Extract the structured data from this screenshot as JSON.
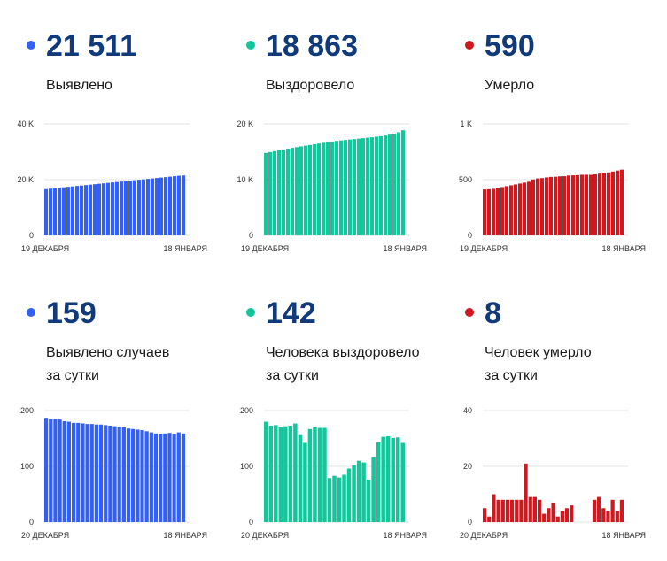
{
  "panels": [
    {
      "value": "21 511",
      "label": [
        "Выявлено"
      ],
      "color": "#3360f0",
      "chart_data": {
        "type": "bar",
        "ylim": [
          0,
          40000
        ],
        "yticks": [
          0,
          20000,
          40000
        ],
        "ytick_labels": [
          "0",
          "20 K",
          "40 K"
        ],
        "x_labels": [
          "19 ДЕКАБРЯ",
          "18 ЯНВАРЯ"
        ],
        "values": [
          16600,
          16760,
          16920,
          17080,
          17240,
          17400,
          17560,
          17720,
          17880,
          18040,
          18200,
          18360,
          18520,
          18680,
          18840,
          19000,
          19160,
          19320,
          19480,
          19640,
          19800,
          19960,
          20120,
          20280,
          20440,
          20600,
          20760,
          20920,
          21080,
          21240,
          21400,
          21511
        ]
      }
    },
    {
      "value": "18 863",
      "label": [
        "Выздоровело"
      ],
      "color": "#12c79c",
      "chart_data": {
        "type": "bar",
        "ylim": [
          0,
          20000
        ],
        "yticks": [
          0,
          10000,
          20000
        ],
        "ytick_labels": [
          "0",
          "10 K",
          "20 K"
        ],
        "x_labels": [
          "19 ДЕКАБРЯ",
          "18 ЯНВАРЯ"
        ],
        "values": [
          14800,
          14950,
          15100,
          15250,
          15400,
          15550,
          15700,
          15830,
          15960,
          16090,
          16220,
          16350,
          16480,
          16600,
          16720,
          16840,
          16960,
          17040,
          17120,
          17200,
          17280,
          17360,
          17440,
          17520,
          17600,
          17700,
          17800,
          17920,
          18080,
          18260,
          18500,
          18863
        ]
      }
    },
    {
      "value": "590",
      "label": [
        "Умерло"
      ],
      "color": "#cc1a20",
      "chart_data": {
        "type": "bar",
        "ylim": [
          0,
          1000
        ],
        "yticks": [
          0,
          500,
          1000
        ],
        "ytick_labels": [
          "0",
          "500",
          "1 K"
        ],
        "x_labels": [
          "19 ДЕКАБРЯ",
          "18 ЯНВАРЯ"
        ],
        "values": [
          412,
          414,
          417,
          425,
          433,
          441,
          449,
          457,
          465,
          473,
          481,
          502,
          511,
          514,
          520,
          525,
          526,
          530,
          531,
          537,
          539,
          541,
          544,
          544,
          544,
          548,
          554,
          561,
          565,
          573,
          582,
          590
        ]
      }
    },
    {
      "value": "159",
      "label": [
        "Выявлено случаев",
        "за сутки"
      ],
      "color": "#3360f0",
      "chart_data": {
        "type": "bar",
        "ylim": [
          0,
          200
        ],
        "yticks": [
          0,
          100,
          200
        ],
        "ytick_labels": [
          "0",
          "100",
          "200"
        ],
        "x_labels": [
          "20 ДЕКАБРЯ",
          "18 ЯНВАРЯ"
        ],
        "values": [
          187,
          185,
          185,
          184,
          181,
          180,
          178,
          178,
          177,
          176,
          176,
          175,
          175,
          174,
          173,
          172,
          171,
          170,
          168,
          167,
          166,
          165,
          163,
          161,
          159,
          158,
          159,
          160,
          158,
          161,
          159
        ]
      }
    },
    {
      "value": "142",
      "label": [
        "Человека выздоровело",
        "за сутки"
      ],
      "color": "#12c79c",
      "chart_data": {
        "type": "bar",
        "ylim": [
          0,
          200
        ],
        "yticks": [
          0,
          100,
          200
        ],
        "ytick_labels": [
          "0",
          "100",
          "200"
        ],
        "x_labels": [
          "20 ДЕКАБРЯ",
          "18 ЯНВАРЯ"
        ],
        "values": [
          180,
          173,
          174,
          170,
          172,
          173,
          177,
          156,
          142,
          167,
          170,
          169,
          169,
          79,
          83,
          80,
          85,
          96,
          102,
          110,
          107,
          76,
          116,
          143,
          153,
          154,
          151,
          152,
          142
        ]
      }
    },
    {
      "value": "8",
      "label": [
        "Человек умерло",
        "за сутки"
      ],
      "color": "#cc1a20",
      "chart_data": {
        "type": "bar",
        "ylim": [
          0,
          40
        ],
        "yticks": [
          0,
          20,
          40
        ],
        "ytick_labels": [
          "0",
          "20",
          "40"
        ],
        "x_labels": [
          "20 ДЕКАБРЯ",
          "18 ЯНВАРЯ"
        ],
        "values": [
          5,
          2,
          10,
          8,
          8,
          8,
          8,
          8,
          8,
          21,
          9,
          9,
          8,
          3,
          5,
          7,
          2,
          4,
          5,
          6,
          0,
          0,
          0,
          0,
          8,
          9,
          5,
          4,
          8,
          4,
          8
        ]
      }
    }
  ]
}
